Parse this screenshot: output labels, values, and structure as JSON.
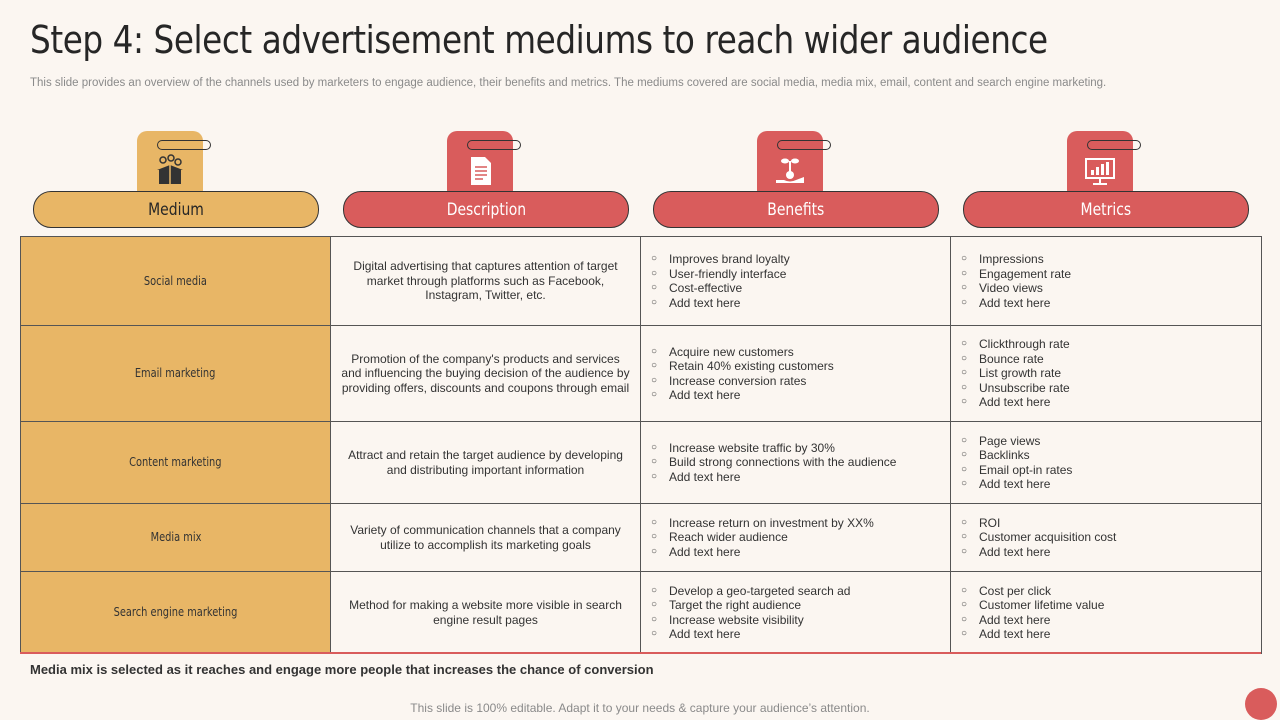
{
  "title": "Step 4: Select advertisement mediums to reach wider audience",
  "subtitle": "This slide provides an overview of the channels used by marketers to engage audience, their benefits and metrics. The mediums covered are social media, media mix, email, content and search engine marketing.",
  "headers": [
    {
      "label": "Medium",
      "icon": "medium-icon"
    },
    {
      "label": "Description",
      "icon": "document-icon"
    },
    {
      "label": "Benefits",
      "icon": "money-plant-icon"
    },
    {
      "label": "Metrics",
      "icon": "monitor-chart-icon"
    }
  ],
  "rows": [
    {
      "medium": "Social media",
      "description": "Digital advertising that captures attention of target market through platforms such as Facebook, Instagram, Twitter, etc.",
      "benefits": [
        "Improves brand loyalty",
        "User-friendly interface",
        "Cost-effective",
        "Add text here"
      ],
      "metrics": [
        "Impressions",
        "Engagement rate",
        "Video views",
        "Add text here"
      ]
    },
    {
      "medium": "Email marketing",
      "description": "Promotion of the company's products and services and influencing the buying decision of the audience by providing offers, discounts and coupons through email",
      "benefits": [
        "Acquire new customers",
        "Retain 40% existing customers",
        "Increase conversion rates",
        "Add text here"
      ],
      "metrics": [
        "Clickthrough rate",
        "Bounce rate",
        "List growth rate",
        "Unsubscribe rate",
        "Add text here"
      ]
    },
    {
      "medium": "Content marketing",
      "description": "Attract and retain the target audience by developing and distributing important information",
      "benefits": [
        "Increase website traffic by 30%",
        "Build strong connections with the audience",
        "Add text here"
      ],
      "metrics": [
        "Page views",
        "Backlinks",
        "Email opt-in rates",
        "Add text here"
      ]
    },
    {
      "medium": "Media mix",
      "description": "Variety of communication channels that a company utilize to accomplish its marketing goals",
      "benefits": [
        "Increase return on investment by XX%",
        "Reach wider audience",
        "Add text here"
      ],
      "metrics": [
        "ROI",
        "Customer acquisition cost",
        "Add text here"
      ]
    },
    {
      "medium": "Search engine marketing",
      "description": "Method for making a website more visible in search engine result pages",
      "benefits": [
        "Develop a geo-targeted search ad",
        "Target the right audience",
        "Increase website visibility",
        "Add text here"
      ],
      "metrics": [
        "Cost per click",
        "Customer lifetime value",
        "Add text here",
        "Add text here"
      ]
    }
  ],
  "conclusion": "Media mix is selected as it reaches and engage more people that increases the chance of conversion",
  "footer": "This slide is 100% editable. Adapt it to your needs & capture your audience’s attention.",
  "colors": {
    "accent_yellow": "#e8b666",
    "accent_red": "#d95c5c",
    "background": "#fbf6f1"
  }
}
